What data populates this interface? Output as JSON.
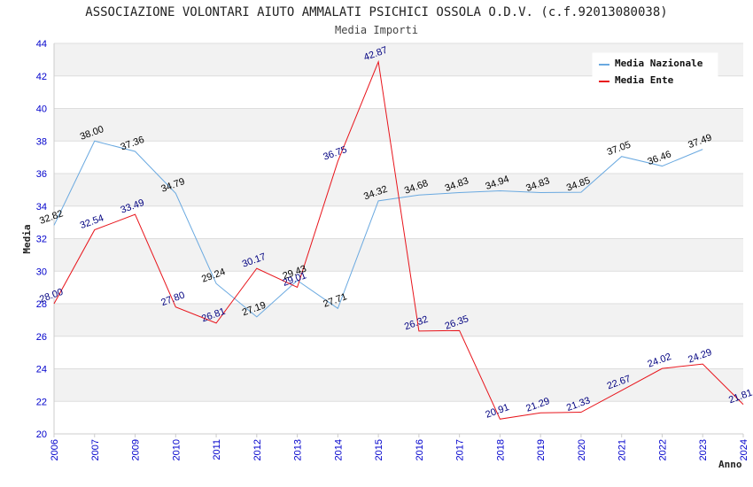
{
  "title": "ASSOCIAZIONE VOLONTARI AIUTO AMMALATI PSICHICI OSSOLA O.D.V. (c.f.92013080038)",
  "subtitle": "Media Importi",
  "chart_data": {
    "type": "line",
    "title": "ASSOCIAZIONE VOLONTARI AIUTO AMMALATI PSICHICI OSSOLA O.D.V. (c.f.92013080038)",
    "subtitle": "Media Importi",
    "xlabel": "Anno",
    "ylabel": "Media",
    "ylim": [
      20,
      44
    ],
    "yticks": [
      20,
      22,
      24,
      26,
      28,
      30,
      32,
      34,
      36,
      38,
      40,
      42,
      44
    ],
    "categories": [
      "2006",
      "2007",
      "2009",
      "2010",
      "2011",
      "2012",
      "2013",
      "2014",
      "2015",
      "2016",
      "2017",
      "2018",
      "2019",
      "2020",
      "2021",
      "2022",
      "2023",
      "2024"
    ],
    "grid": true,
    "legend_position": "top-right",
    "series": [
      {
        "name": "Media Nazionale",
        "color": "#6aa9e0",
        "label_color": "#000000",
        "values": [
          32.82,
          38.0,
          37.36,
          34.79,
          29.24,
          27.19,
          29.43,
          27.71,
          34.32,
          34.68,
          34.83,
          34.94,
          34.83,
          34.85,
          37.05,
          36.46,
          37.49,
          null
        ],
        "labels": [
          "32.82",
          "38.00",
          "37.36",
          "34.79",
          "29.24",
          "27.19",
          "29.43",
          "27.71",
          "34.32",
          "34.68",
          "34.83",
          "34.94",
          "34.83",
          "34.85",
          "37.05",
          "36.46",
          "37.49",
          null
        ]
      },
      {
        "name": "Media Ente",
        "color": "#e8141b",
        "label_color": "#000080",
        "values": [
          28.0,
          32.54,
          33.49,
          27.8,
          26.81,
          30.17,
          29.01,
          36.75,
          42.87,
          26.32,
          26.35,
          20.91,
          21.29,
          21.33,
          22.67,
          24.02,
          24.29,
          21.81
        ],
        "labels": [
          "28.00",
          "32.54",
          "33.49",
          "27.80",
          "26.81",
          "30.17",
          "29.01",
          "36.75",
          "42.87",
          "26.32",
          "26.35",
          "20.91",
          "21.29",
          "21.33",
          "22.67",
          "24.02",
          "24.29",
          "21.81"
        ]
      }
    ]
  }
}
